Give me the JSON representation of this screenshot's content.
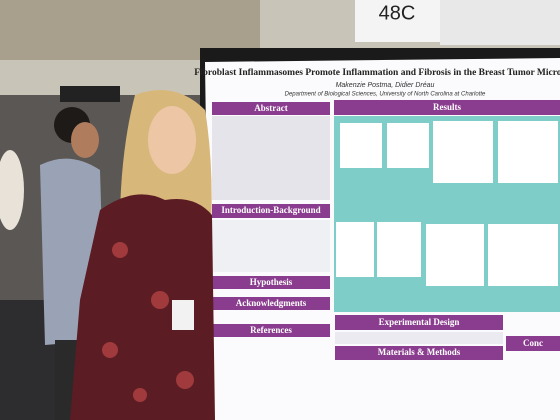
{
  "sign": "48C",
  "poster": {
    "title": "Fibroblast Inflammasomes Promote Inflammation and Fibrosis in the Breast Tumor Microenv",
    "authors": "Makenzie Postma, Didier Dréau",
    "affiliation": "Department of Biological Sciences, University of North Carolina at Charlotte",
    "sections": {
      "abstract": "Abstract",
      "results": "Results",
      "introduction": "Introduction-Background",
      "hypothesis": "Hypothesis",
      "acknowledgments": "Acknowledgments",
      "references": "References",
      "experimental_design": "Experimental Design",
      "methods": "Materials & Methods",
      "conclusions": "Conc"
    }
  }
}
